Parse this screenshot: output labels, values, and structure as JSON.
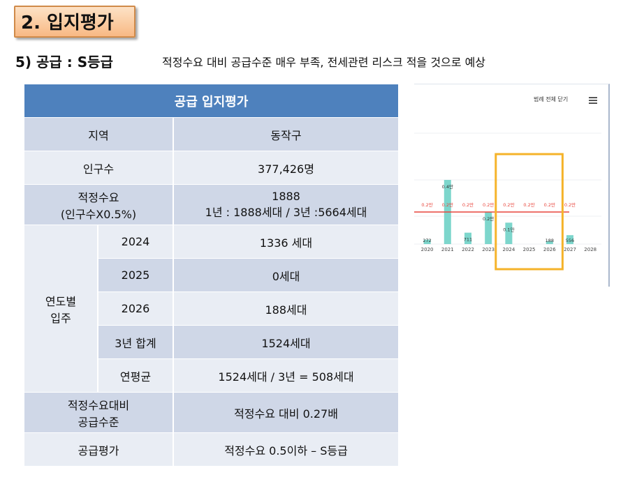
{
  "header": {
    "title": "2. 입지평가",
    "subtitle": "5) 공급 : S등급",
    "note": "적정수요 대비 공급수준 매우 부족, 전세관련 리스크 적을 것으로 예상"
  },
  "table": {
    "heading": "공급 입지평가",
    "region_label": "지역",
    "region_value": "동작구",
    "population_label": "인구수",
    "population_value": "377,426명",
    "demand_label_1": "적정수요",
    "demand_label_2": "(인구수X0.5%)",
    "demand_value_1": "1888",
    "demand_value_2": "1년 : 1888세대 / 3년 :5664세대",
    "yearly_label_1": "연도별",
    "yearly_label_2": "입주",
    "rows": [
      {
        "year": "2024",
        "value": "1336 세대"
      },
      {
        "year": "2025",
        "value": "0세대"
      },
      {
        "year": "2026",
        "value": "188세대"
      },
      {
        "year": "3년 합계",
        "value": "1524세대"
      },
      {
        "year": "연평균",
        "value": "1524세대 / 3년 = 508세대"
      }
    ],
    "supply_level_label_1": "적정수요대비",
    "supply_level_label_2": "공급수준",
    "supply_level_value": "적정수요 대비 0.27배",
    "evaluation_label": "공급평가",
    "evaluation_value": "적정수요 0.5이하 – S등급"
  },
  "chart_ui": {
    "legend_toggle": "범례 전체 닫기",
    "menu_icon": "hamburger-menu-icon"
  },
  "chart_data": {
    "type": "bar",
    "categories": [
      "2020",
      "2021",
      "2022",
      "2023",
      "2024",
      "2025",
      "2026",
      "2027",
      "2028"
    ],
    "series": [
      {
        "values": [
          272,
          4000,
          711,
          2000,
          1336,
          0,
          188,
          556,
          0
        ]
      }
    ],
    "bar_labels": [
      "272",
      "0.4만",
      "711",
      "0.2만",
      "0.1만",
      "",
      "188",
      "556",
      ""
    ],
    "reference_line": {
      "value": 2000,
      "labels": [
        "0.2만",
        "0.2만",
        "0.2만",
        "0.2만",
        "0.2만",
        "0.2만",
        "0.2만",
        "0.2만"
      ]
    },
    "highlight_range": [
      "2024",
      "2026"
    ],
    "colors": {
      "bar": "#7dd6cc",
      "line": "#e8453c",
      "highlight": "#f5b32a"
    }
  }
}
